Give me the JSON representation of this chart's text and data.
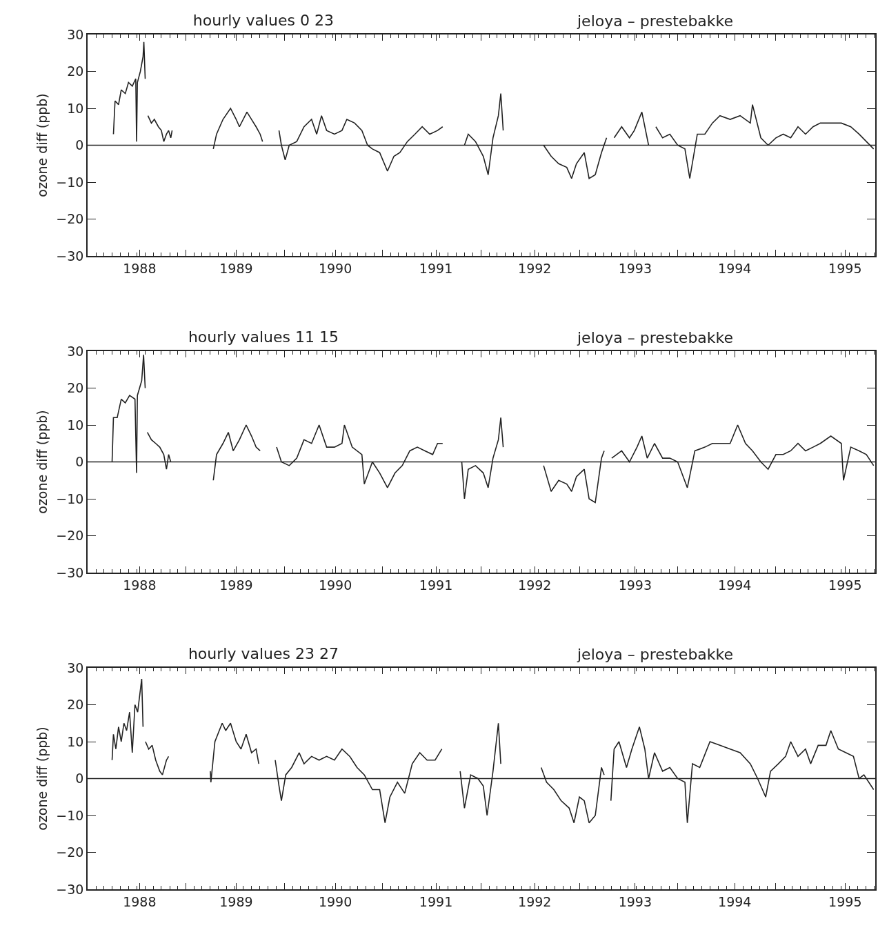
{
  "chart_data": [
    {
      "type": "line",
      "title": "hourly values 0 23",
      "subtitle": "jeloya – prestebakke",
      "ylabel": "ozone diff (ppb)",
      "xlim": [
        "1988-01-01",
        "1996-01-05"
      ],
      "ylim": [
        -30,
        30
      ],
      "yticks": [
        -30,
        -20,
        -10,
        0,
        10,
        20,
        30
      ],
      "xticks": [
        {
          "value": "1988-07-12",
          "label": "1988"
        },
        {
          "value": "1989-01-01",
          "label": null
        },
        {
          "value": "1989-07-06",
          "label": "1989"
        },
        {
          "value": "1990-01-01",
          "label": null
        },
        {
          "value": "1990-07-09",
          "label": "1990"
        },
        {
          "value": "1991-01-01",
          "label": null
        },
        {
          "value": "1991-07-18",
          "label": "1991"
        },
        {
          "value": "1992-01-01",
          "label": null
        },
        {
          "value": "1992-07-19",
          "label": "1992"
        },
        {
          "value": "1993-01-01",
          "label": null
        },
        {
          "value": "1993-07-27",
          "label": "1993"
        },
        {
          "value": "1994-01-01",
          "label": null
        },
        {
          "value": "1994-08-01",
          "label": "1994"
        },
        {
          "value": "1995-01-01",
          "label": null
        },
        {
          "value": "1995-09-15",
          "label": "1995"
        }
      ],
      "grid": false,
      "line_style": "solid",
      "ref_lines": [
        {
          "axis": "y",
          "value": 0,
          "color": "#222222"
        }
      ],
      "series": [
        {
          "color": "#222222",
          "x": [
            "1988-04-06",
            "1988-04-12",
            "1988-04-25",
            "1988-05-05",
            "1988-05-20",
            "1988-06-01",
            "1988-06-15",
            "1988-06-28",
            "1988-07-01",
            "1988-07-04",
            "1988-07-15",
            "1988-07-25",
            "1988-07-28",
            "1988-08-02",
            "1988-08-07",
            "1988-08-12",
            "1988-08-25",
            "1988-09-05",
            "1988-09-20",
            "1988-10-01",
            "1988-10-10",
            "1988-10-20",
            "1988-10-28",
            "1988-11-05",
            "1988-11-10",
            "1989-01-01",
            "1989-04-12",
            "1989-04-24",
            "1989-05-18",
            "1989-06-15",
            "1989-07-06",
            "1989-07-18",
            "1989-08-15",
            "1989-09-01",
            "1989-09-18",
            "1989-10-03",
            "1989-10-12",
            "1989-11-10",
            "1989-12-12",
            "1989-12-21",
            "1990-01-04",
            "1990-01-19",
            "1990-02-16",
            "1990-03-15",
            "1990-04-12",
            "1990-05-01",
            "1990-05-19",
            "1990-06-07",
            "1990-07-06",
            "1990-08-03",
            "1990-08-21",
            "1990-09-19",
            "1990-10-16",
            "1990-11-06",
            "1990-11-24",
            "1990-12-21",
            "1991-01-19",
            "1991-02-12",
            "1991-03-06",
            "1991-04-03",
            "1991-05-01",
            "1991-05-28",
            "1991-06-25",
            "1991-07-24",
            "1991-08-12",
            "1991-09-20",
            "1991-11-01",
            "1991-11-15",
            "1991-12-12",
            "1992-01-10",
            "1992-01-28",
            "1992-02-15",
            "1992-03-06",
            "1992-03-15",
            "1992-03-24",
            "1992-06-01",
            "1992-08-21",
            "1992-09-18",
            "1992-10-16",
            "1992-11-15",
            "1992-12-03",
            "1992-12-21",
            "1993-01-19",
            "1993-02-06",
            "1993-03-01",
            "1993-03-24",
            "1993-04-12",
            "1993-04-25",
            "1993-05-10",
            "1993-06-07",
            "1993-07-06",
            "1993-07-24",
            "1993-08-21",
            "1993-09-15",
            "1993-09-28",
            "1993-10-12",
            "1993-11-06",
            "1993-12-03",
            "1994-01-01",
            "1994-01-28",
            "1994-02-15",
            "1994-03-15",
            "1994-04-12",
            "1994-05-10",
            "1994-06-07",
            "1994-07-15",
            "1994-08-21",
            "1994-09-28",
            "1994-10-06",
            "1994-11-06",
            "1994-12-03",
            "1995-01-01",
            "1995-01-28",
            "1995-02-25",
            "1995-03-24",
            "1995-04-21",
            "1995-05-19",
            "1995-06-15",
            "1995-07-24",
            "1995-09-01",
            "1995-10-06",
            "1995-11-06",
            "1995-12-03",
            "1995-12-30"
          ],
          "values": [
            3,
            12,
            11,
            15,
            14,
            17,
            16,
            18,
            1,
            17,
            20,
            24,
            28,
            18,
            null,
            8,
            6,
            7,
            5,
            4,
            1,
            3,
            4,
            2,
            4,
            null,
            -1,
            3,
            7,
            10,
            7,
            5,
            9,
            7,
            5,
            3,
            1,
            null,
            4,
            0,
            -4,
            0,
            1,
            5,
            7,
            3,
            8,
            4,
            3,
            4,
            7,
            6,
            4,
            0,
            -1,
            -2,
            -7,
            -3,
            -2,
            1,
            3,
            5,
            3,
            4,
            5,
            null,
            0,
            3,
            1,
            -3,
            -8,
            2,
            8,
            14,
            4,
            null,
            0,
            -3,
            -5,
            -6,
            -9,
            -5,
            -2,
            -9,
            -8,
            -2,
            2,
            null,
            2,
            5,
            2,
            4,
            9,
            0,
            null,
            5,
            2,
            3,
            0,
            -1,
            -9,
            3,
            3,
            6,
            8,
            7,
            8,
            6,
            11,
            2,
            0,
            2,
            3,
            2,
            5,
            3,
            5,
            6,
            6,
            6,
            5,
            3,
            1,
            -1
          ]
        }
      ]
    },
    {
      "type": "line",
      "title": "hourly values 11 15",
      "subtitle": "jeloya – prestebakke",
      "ylabel": "ozone diff (ppb)",
      "xlim": [
        "1988-01-01",
        "1996-01-05"
      ],
      "ylim": [
        -30,
        30
      ],
      "yticks": [
        -30,
        -20,
        -10,
        0,
        10,
        20,
        30
      ],
      "xticks": [
        {
          "value": "1988-07-12",
          "label": "1988"
        },
        {
          "value": "1989-01-01",
          "label": null
        },
        {
          "value": "1989-07-06",
          "label": "1989"
        },
        {
          "value": "1990-01-01",
          "label": null
        },
        {
          "value": "1990-07-09",
          "label": "1990"
        },
        {
          "value": "1991-01-01",
          "label": null
        },
        {
          "value": "1991-07-18",
          "label": "1991"
        },
        {
          "value": "1992-01-01",
          "label": null
        },
        {
          "value": "1992-07-19",
          "label": "1992"
        },
        {
          "value": "1993-01-01",
          "label": null
        },
        {
          "value": "1993-07-27",
          "label": "1993"
        },
        {
          "value": "1994-01-01",
          "label": null
        },
        {
          "value": "1994-08-01",
          "label": "1994"
        },
        {
          "value": "1995-01-01",
          "label": null
        },
        {
          "value": "1995-09-15",
          "label": "1995"
        }
      ],
      "grid": false,
      "line_style": "solid",
      "ref_lines": [
        {
          "axis": "y",
          "value": 0,
          "color": "#222222"
        }
      ],
      "series": [
        {
          "color": "#222222",
          "x": [
            "1988-04-01",
            "1988-04-06",
            "1988-04-20",
            "1988-05-05",
            "1988-05-20",
            "1988-06-05",
            "1988-06-25",
            "1988-07-01",
            "1988-07-04",
            "1988-07-20",
            "1988-07-27",
            "1988-08-02",
            "1988-08-06",
            "1988-08-10",
            "1988-08-25",
            "1988-09-10",
            "1988-09-25",
            "1988-10-10",
            "1988-10-20",
            "1988-10-28",
            "1988-11-05",
            "1989-01-01",
            "1989-04-12",
            "1989-04-24",
            "1989-05-18",
            "1989-06-07",
            "1989-06-25",
            "1989-07-18",
            "1989-08-12",
            "1989-09-01",
            "1989-09-18",
            "1989-10-03",
            "1989-11-01",
            "1989-12-03",
            "1989-12-21",
            "1990-01-19",
            "1990-02-16",
            "1990-03-15",
            "1990-04-12",
            "1990-05-10",
            "1990-06-07",
            "1990-07-06",
            "1990-08-03",
            "1990-08-12",
            "1990-09-10",
            "1990-10-16",
            "1990-10-25",
            "1990-11-24",
            "1990-12-21",
            "1991-01-19",
            "1991-02-16",
            "1991-03-15",
            "1991-04-12",
            "1991-05-10",
            "1991-06-07",
            "1991-07-06",
            "1991-07-24",
            "1991-08-12",
            "1991-09-20",
            "1991-10-22",
            "1991-11-01",
            "1991-11-15",
            "1991-12-12",
            "1992-01-10",
            "1992-01-28",
            "1992-02-15",
            "1992-03-06",
            "1992-03-15",
            "1992-03-24",
            "1992-06-01",
            "1992-08-21",
            "1992-09-18",
            "1992-10-16",
            "1992-11-15",
            "1992-12-03",
            "1992-12-21",
            "1993-01-19",
            "1993-02-06",
            "1993-03-01",
            "1993-03-24",
            "1993-04-03",
            "1993-04-18",
            "1993-05-01",
            "1993-06-07",
            "1993-07-06",
            "1993-08-03",
            "1993-08-21",
            "1993-09-10",
            "1993-10-07",
            "1993-11-06",
            "1993-12-03",
            "1994-01-01",
            "1994-02-06",
            "1994-03-06",
            "1994-04-12",
            "1994-05-10",
            "1994-06-07",
            "1994-07-15",
            "1994-08-12",
            "1994-09-10",
            "1994-10-06",
            "1994-11-06",
            "1994-12-03",
            "1995-01-01",
            "1995-01-28",
            "1995-02-25",
            "1995-03-24",
            "1995-04-21",
            "1995-05-19",
            "1995-06-15",
            "1995-07-24",
            "1995-09-01",
            "1995-09-09",
            "1995-10-06",
            "1995-11-06",
            "1995-12-03",
            "1995-12-30"
          ],
          "values": [
            0,
            12,
            12,
            17,
            16,
            18,
            17,
            -3,
            18,
            22,
            29,
            20,
            null,
            8,
            6,
            5,
            4,
            2,
            -2,
            2,
            0,
            null,
            -5,
            2,
            5,
            8,
            3,
            6,
            10,
            7,
            4,
            3,
            null,
            4,
            0,
            -1,
            1,
            6,
            5,
            10,
            4,
            4,
            5,
            10,
            4,
            2,
            -6,
            0,
            -3,
            -7,
            -3,
            -1,
            3,
            4,
            3,
            2,
            5,
            5,
            null,
            0,
            -10,
            -2,
            -1,
            -3,
            -7,
            1,
            6,
            12,
            4,
            null,
            -1,
            -8,
            -5,
            -6,
            -8,
            -4,
            -2,
            -10,
            -11,
            1,
            3,
            null,
            1,
            3,
            0,
            4,
            7,
            1,
            5,
            1,
            1,
            0,
            -7,
            3,
            4,
            5,
            5,
            5,
            10,
            5,
            3,
            0,
            -2,
            2,
            2,
            3,
            5,
            3,
            4,
            5,
            7,
            5,
            -5,
            4,
            3,
            2,
            -1
          ]
        }
      ]
    },
    {
      "type": "line",
      "title": "hourly values 23 27",
      "subtitle": "jeloya – prestebakke",
      "ylabel": "ozone diff (ppb)",
      "xlim": [
        "1988-01-01",
        "1996-01-05"
      ],
      "ylim": [
        -30,
        30
      ],
      "yticks": [
        -30,
        -20,
        -10,
        0,
        10,
        20,
        30
      ],
      "xticks": [
        {
          "value": "1988-07-12",
          "label": "1988"
        },
        {
          "value": "1989-01-01",
          "label": null
        },
        {
          "value": "1989-07-06",
          "label": "1989"
        },
        {
          "value": "1990-01-01",
          "label": null
        },
        {
          "value": "1990-07-09",
          "label": "1990"
        },
        {
          "value": "1991-01-01",
          "label": null
        },
        {
          "value": "1991-07-18",
          "label": "1991"
        },
        {
          "value": "1992-01-01",
          "label": null
        },
        {
          "value": "1992-07-19",
          "label": "1992"
        },
        {
          "value": "1993-01-01",
          "label": null
        },
        {
          "value": "1993-07-27",
          "label": "1993"
        },
        {
          "value": "1994-01-01",
          "label": null
        },
        {
          "value": "1994-08-01",
          "label": "1994"
        },
        {
          "value": "1995-01-01",
          "label": null
        },
        {
          "value": "1995-09-15",
          "label": "1995"
        }
      ],
      "grid": false,
      "line_style": "solid",
      "ref_lines": [
        {
          "axis": "y",
          "value": 0,
          "color": "#222222"
        }
      ],
      "series": [
        {
          "color": "#222222",
          "x": [
            "1988-04-01",
            "1988-04-06",
            "1988-04-15",
            "1988-04-25",
            "1988-05-05",
            "1988-05-15",
            "1988-05-25",
            "1988-06-05",
            "1988-06-15",
            "1988-06-25",
            "1988-07-05",
            "1988-07-20",
            "1988-07-25",
            "1988-07-30",
            "1988-08-03",
            "1988-08-15",
            "1988-08-28",
            "1988-09-10",
            "1988-09-25",
            "1988-10-05",
            "1988-10-20",
            "1988-10-28",
            "1989-01-01",
            "1989-04-01",
            "1989-04-03",
            "1989-04-18",
            "1989-05-15",
            "1989-05-28",
            "1989-06-15",
            "1989-07-06",
            "1989-07-24",
            "1989-08-12",
            "1989-09-01",
            "1989-09-18",
            "1989-09-28",
            "1989-11-01",
            "1989-11-28",
            "1989-12-12",
            "1989-12-21",
            "1990-01-06",
            "1990-01-28",
            "1990-02-25",
            "1990-03-15",
            "1990-04-12",
            "1990-05-10",
            "1990-06-07",
            "1990-07-06",
            "1990-08-03",
            "1990-09-01",
            "1990-09-28",
            "1990-10-25",
            "1990-11-24",
            "1990-12-21",
            "1991-01-10",
            "1991-01-28",
            "1991-02-25",
            "1991-03-24",
            "1991-04-21",
            "1991-05-19",
            "1991-06-15",
            "1991-07-15",
            "1991-08-09",
            "1991-09-20",
            "1991-10-16",
            "1991-11-01",
            "1991-11-24",
            "1991-12-21",
            "1992-01-10",
            "1992-01-24",
            "1992-02-15",
            "1992-03-06",
            "1992-03-15",
            "1992-06-01",
            "1992-08-12",
            "1992-09-01",
            "1992-09-28",
            "1992-10-25",
            "1992-11-24",
            "1992-12-12",
            "1993-01-01",
            "1993-01-19",
            "1993-02-06",
            "1993-03-01",
            "1993-03-24",
            "1993-04-03",
            "1993-04-15",
            "1993-04-28",
            "1993-05-10",
            "1993-05-28",
            "1993-06-25",
            "1993-07-15",
            "1993-08-12",
            "1993-09-01",
            "1993-09-15",
            "1993-10-07",
            "1993-11-06",
            "1993-12-03",
            "1994-01-01",
            "1994-01-28",
            "1994-02-06",
            "1994-02-25",
            "1994-03-24",
            "1994-05-01",
            "1994-06-07",
            "1994-07-15",
            "1994-08-21",
            "1994-09-28",
            "1994-10-25",
            "1994-11-24",
            "1994-12-12",
            "1995-01-10",
            "1995-02-06",
            "1995-02-25",
            "1995-03-24",
            "1995-04-21",
            "1995-05-10",
            "1995-06-07",
            "1995-07-06",
            "1995-07-24",
            "1995-08-21",
            "1995-09-18",
            "1995-10-16",
            "1995-11-06",
            "1995-11-24",
            "1995-12-30"
          ],
          "values": [
            5,
            12,
            8,
            14,
            10,
            15,
            13,
            18,
            7,
            20,
            18,
            27,
            14,
            null,
            10,
            8,
            9,
            5,
            2,
            1,
            5,
            6,
            null,
            2,
            -1,
            10,
            15,
            13,
            15,
            10,
            8,
            12,
            7,
            8,
            4,
            null,
            5,
            -2,
            -6,
            1,
            3,
            7,
            4,
            6,
            5,
            6,
            5,
            8,
            6,
            3,
            1,
            -3,
            -3,
            -12,
            -5,
            -1,
            -4,
            4,
            7,
            5,
            5,
            8,
            null,
            2,
            -8,
            1,
            0,
            -2,
            -10,
            2,
            15,
            4,
            null,
            3,
            -1,
            -3,
            -6,
            -8,
            -12,
            -5,
            -6,
            -12,
            -10,
            3,
            1,
            null,
            -6,
            8,
            10,
            3,
            8,
            14,
            8,
            0,
            7,
            2,
            3,
            0,
            -1,
            -12,
            4,
            3,
            10,
            9,
            8,
            7,
            4,
            0,
            -5,
            2,
            4,
            6,
            10,
            6,
            8,
            4,
            9,
            9,
            13,
            8,
            7,
            6,
            0,
            1,
            -3
          ]
        }
      ]
    }
  ]
}
